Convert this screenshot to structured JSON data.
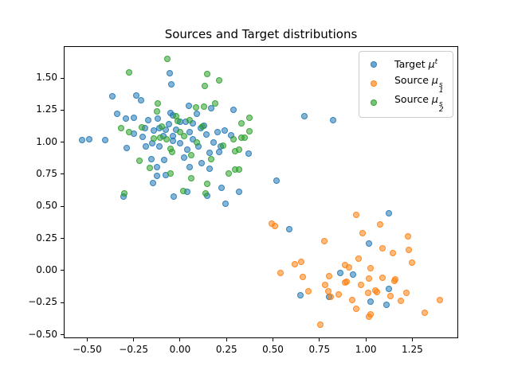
{
  "chart_data": {
    "type": "scatter",
    "title": "Sources and Target distributions",
    "xlabel": "",
    "ylabel": "",
    "grid": false,
    "legend_position": "upper right",
    "xlim": [
      -0.626,
      1.497
    ],
    "ylim": [
      -0.527,
      1.748
    ],
    "xticks": {
      "values": [
        -0.5,
        -0.25,
        0.0,
        0.25,
        0.5,
        0.75,
        1.0,
        1.25
      ],
      "labels": [
        "−0.50",
        "−0.25",
        "0.00",
        "0.25",
        "0.50",
        "0.75",
        "1.00",
        "1.25"
      ]
    },
    "yticks": {
      "values": [
        1.5,
        1.25,
        1.0,
        0.75,
        0.5,
        0.25,
        0.0,
        -0.25,
        -0.5
      ],
      "labels": [
        "1.50",
        "1.25",
        "1.00",
        "0.75",
        "0.50",
        "0.25",
        "0.00",
        "−0.25",
        "−0.50"
      ]
    },
    "marker_alpha": 0.55,
    "marker_edge_alpha": 0.8,
    "series": [
      {
        "name": "Target μ^t",
        "legend": {
          "prefix": "Target ",
          "symbol": "μ",
          "sup": "t",
          "sub": ""
        },
        "color": "#1f77b4",
        "points": [
          [
            -0.056,
            1.537
          ],
          [
            -0.047,
            1.45
          ],
          [
            -0.365,
            1.357
          ],
          [
            -0.236,
            1.364
          ],
          [
            -0.21,
            1.326
          ],
          [
            0.047,
            1.283
          ],
          [
            -0.339,
            1.221
          ],
          [
            -0.292,
            1.184
          ],
          [
            -0.12,
            1.184
          ],
          [
            -0.249,
            1.19
          ],
          [
            -0.039,
            1.209
          ],
          [
            0.03,
            1.159
          ],
          [
            0.069,
            1.147
          ],
          [
            -0.189,
            1.11
          ],
          [
            -0.142,
            1.091
          ],
          [
            -0.112,
            1.11
          ],
          [
            -0.077,
            1.097
          ],
          [
            -0.249,
            1.066
          ],
          [
            -0.039,
            1.048
          ],
          [
            -0.528,
            1.017
          ],
          [
            -0.489,
            1.023
          ],
          [
            -0.403,
            1.017
          ],
          [
            -0.184,
            0.967
          ],
          [
            -0.287,
            0.954
          ],
          [
            -0.112,
            0.967
          ],
          [
            -0.086,
            0.861
          ],
          [
            -0.154,
            0.868
          ],
          [
            -0.124,
            0.806
          ],
          [
            -0.124,
            0.737
          ],
          [
            -0.077,
            0.744
          ],
          [
            0.051,
            0.806
          ],
          [
            -0.146,
            0.681
          ],
          [
            0.039,
            0.613
          ],
          [
            0.167,
            1.264
          ],
          [
            0.287,
            1.252
          ],
          [
            0.669,
            1.202
          ],
          [
            0.824,
            1.171
          ],
          [
            0.24,
            1.091
          ],
          [
            0.275,
            1.054
          ],
          [
            0.21,
            0.923
          ],
          [
            0.369,
            0.911
          ],
          [
            0.116,
            0.836
          ],
          [
            0.159,
            0.793
          ],
          [
            0.519,
            0.7
          ],
          [
            0.223,
            0.644
          ],
          [
            0.317,
            0.613
          ],
          [
            -0.05,
            1.23
          ],
          [
            0.09,
            1.22
          ],
          [
            -0.17,
            1.17
          ],
          [
            0.0,
            1.16
          ],
          [
            0.11,
            1.11
          ],
          [
            -0.06,
            1.14
          ],
          [
            0.05,
            1.08
          ],
          [
            0.14,
            1.06
          ],
          [
            -0.02,
            1.1
          ],
          [
            0.07,
            1.02
          ],
          [
            -0.09,
            1.05
          ],
          [
            0.0,
            0.99
          ],
          [
            0.1,
            0.97
          ],
          [
            0.18,
            1.0
          ],
          [
            0.04,
            0.94
          ],
          [
            -0.04,
            1.01
          ],
          [
            0.13,
            1.13
          ],
          [
            0.2,
            1.08
          ],
          [
            -0.15,
            0.99
          ],
          [
            0.02,
            0.88
          ],
          [
            -0.2,
            1.04
          ],
          [
            0.16,
            0.92
          ],
          [
            0.22,
            0.97
          ],
          [
            -0.304,
            0.576
          ],
          [
            -0.033,
            0.574
          ],
          [
            0.146,
            0.583
          ],
          [
            0.244,
            0.521
          ],
          [
            0.586,
            0.32
          ],
          [
            1.124,
            0.446
          ],
          [
            1.017,
            0.211
          ],
          [
            0.862,
            -0.019
          ],
          [
            0.931,
            -0.031
          ],
          [
            0.648,
            -0.193
          ],
          [
            0.802,
            -0.205
          ],
          [
            1.025,
            -0.242
          ],
          [
            1.124,
            -0.143
          ],
          [
            1.111,
            -0.267
          ]
        ]
      },
      {
        "name": "Source μ_1^s",
        "legend": {
          "prefix": "Source ",
          "symbol": "μ",
          "sup": "s",
          "sub": "1"
        },
        "color": "#ff7f0e",
        "points": [
          [
            0.51,
            0.347
          ],
          [
            0.493,
            0.365
          ],
          [
            0.948,
            0.434
          ],
          [
            1.077,
            0.36
          ],
          [
            0.777,
            0.229
          ],
          [
            0.982,
            0.291
          ],
          [
            1.227,
            0.266
          ],
          [
            1.09,
            0.173
          ],
          [
            1.145,
            0.136
          ],
          [
            1.231,
            0.161
          ],
          [
            0.618,
            0.049
          ],
          [
            0.652,
            0.068
          ],
          [
            0.961,
            0.093
          ],
          [
            0.888,
            0.043
          ],
          [
            0.91,
            0.025
          ],
          [
            1.025,
            0.019
          ],
          [
            1.248,
            0.062
          ],
          [
            0.541,
            -0.019
          ],
          [
            0.661,
            -0.05
          ],
          [
            0.802,
            -0.043
          ],
          [
            0.888,
            -0.093
          ],
          [
            1.017,
            -0.062
          ],
          [
            0.974,
            -0.112
          ],
          [
            1.09,
            -0.056
          ],
          [
            1.154,
            -0.081
          ],
          [
            0.781,
            -0.112
          ],
          [
            0.798,
            -0.161
          ],
          [
            0.691,
            -0.161
          ],
          [
            0.811,
            -0.205
          ],
          [
            0.854,
            -0.186
          ],
          [
            0.927,
            -0.23
          ],
          [
            1.012,
            -0.174
          ],
          [
            1.06,
            -0.167
          ],
          [
            1.218,
            -0.174
          ],
          [
            1.188,
            -0.236
          ],
          [
            0.948,
            -0.298
          ],
          [
            1.317,
            -0.329
          ],
          [
            1.017,
            -0.36
          ],
          [
            0.755,
            -0.422
          ],
          [
            1.398,
            -0.23
          ],
          [
            1.025,
            -0.341
          ],
          [
            1.158,
            -0.068
          ],
          [
            0.897,
            -0.087
          ],
          [
            1.051,
            -0.155
          ],
          [
            1.133,
            -0.199
          ]
        ]
      },
      {
        "name": "Source μ_2^s",
        "legend": {
          "prefix": "Source ",
          "symbol": "μ",
          "sup": "s",
          "sub": "2"
        },
        "color": "#2ca02c",
        "points": [
          [
            -0.069,
            1.649
          ],
          [
            -0.275,
            1.543
          ],
          [
            -0.12,
            1.302
          ],
          [
            0.086,
            1.271
          ],
          [
            -0.124,
            1.24
          ],
          [
            -0.013,
            1.165
          ],
          [
            -0.317,
            1.11
          ],
          [
            -0.206,
            1.116
          ],
          [
            -0.275,
            1.078
          ],
          [
            -0.107,
            1.035
          ],
          [
            -0.073,
            1.023
          ],
          [
            -0.043,
            0.923
          ],
          [
            -0.219,
            0.855
          ],
          [
            -0.163,
            0.799
          ],
          [
            -0.051,
            0.756
          ],
          [
            0.06,
            0.719
          ],
          [
            -0.3,
            0.601
          ],
          [
            0.017,
            0.62
          ],
          [
            0.146,
            1.53
          ],
          [
            0.21,
            1.481
          ],
          [
            0.133,
            1.438
          ],
          [
            0.189,
            1.302
          ],
          [
            0.129,
            1.277
          ],
          [
            0.373,
            1.19
          ],
          [
            0.33,
            1.147
          ],
          [
            0.373,
            1.085
          ],
          [
            0.287,
            1.023
          ],
          [
            0.33,
            1.035
          ],
          [
            0.232,
            0.973
          ],
          [
            0.296,
            0.929
          ],
          [
            0.167,
            0.868
          ],
          [
            0.262,
            0.756
          ],
          [
            0.296,
            0.787
          ],
          [
            0.146,
            0.675
          ],
          [
            0.137,
            0.601
          ],
          [
            0.347,
            1.035
          ],
          [
            0.317,
            0.942
          ],
          [
            0.317,
            0.787
          ],
          [
            -0.02,
            1.2
          ],
          [
            0.05,
            1.17
          ],
          [
            -0.1,
            1.12
          ],
          [
            0.02,
            1.05
          ],
          [
            -0.05,
            0.95
          ],
          [
            0.09,
            1.0
          ],
          [
            0.0,
            1.08
          ],
          [
            -0.14,
            1.03
          ],
          [
            0.06,
            0.9
          ],
          [
            0.12,
            1.12
          ]
        ]
      }
    ]
  }
}
